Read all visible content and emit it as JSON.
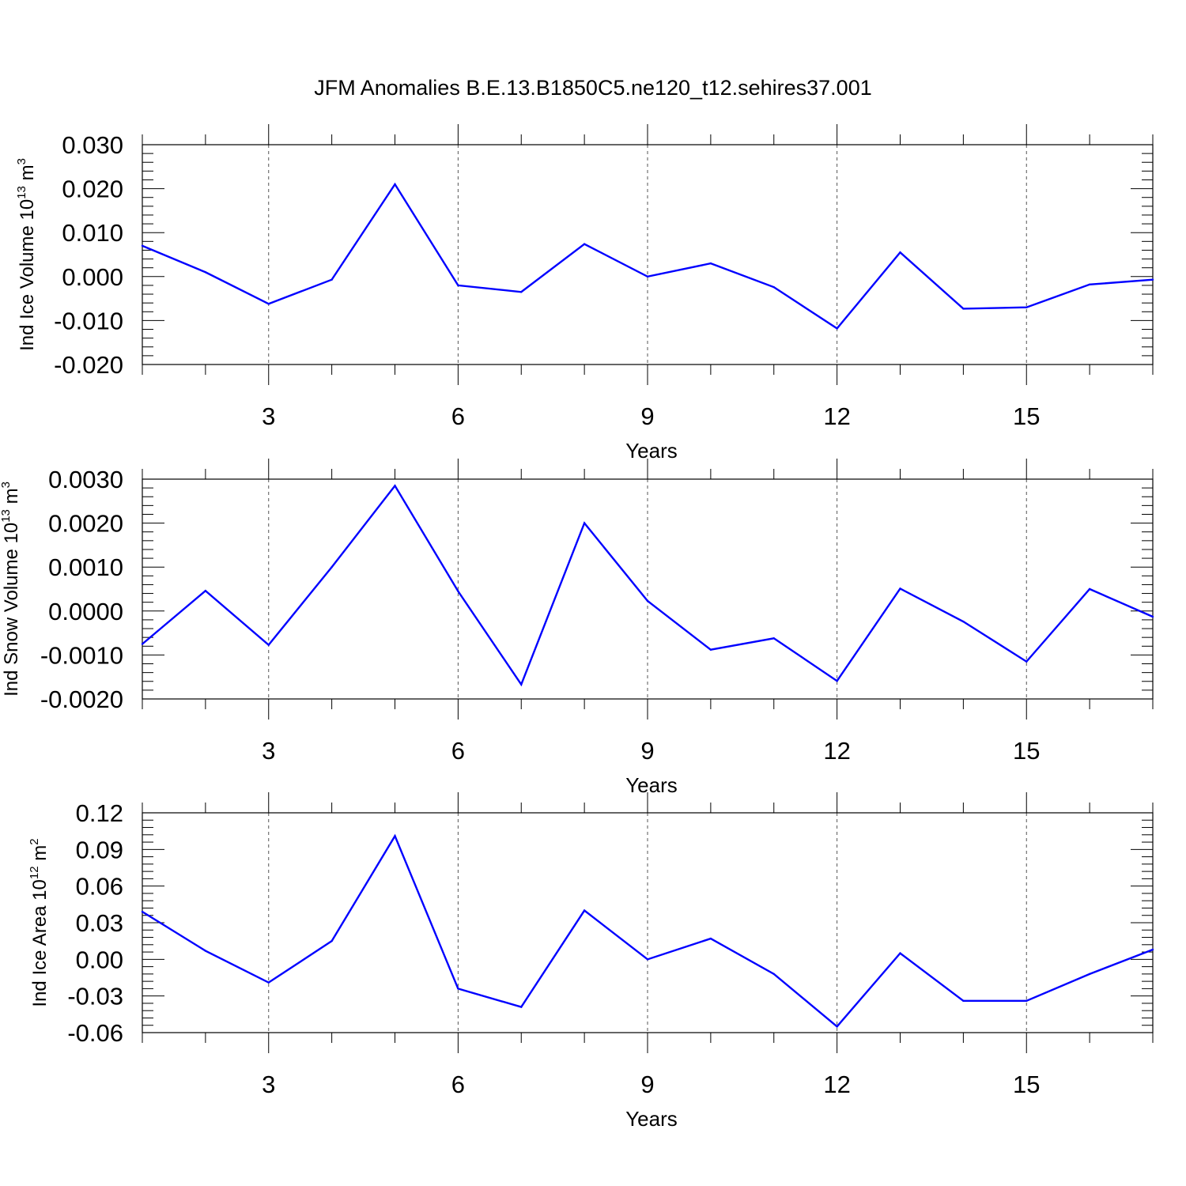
{
  "title": "JFM Anomalies B.E.13.B1850C5.ne120_t12.sehires37.001",
  "line_color": "#0000ff",
  "chart_data": [
    {
      "type": "line",
      "ylabel": "Ind Ice Volume 10",
      "ylabel_exp": "13",
      "ylabel_unit": " m",
      "ylabel_unit_exp": "3",
      "xlabel": "Years",
      "xlim": [
        1,
        17
      ],
      "ylim": [
        -0.02,
        0.03
      ],
      "xticks": [
        3,
        6,
        9,
        12,
        15
      ],
      "xtick_labels": [
        "3",
        "6",
        "9",
        "12",
        "15"
      ],
      "yticks": [
        -0.02,
        -0.01,
        0.0,
        0.01,
        0.02,
        0.03
      ],
      "ytick_labels": [
        "-0.020",
        "-0.010",
        "0.000",
        "0.010",
        "0.020",
        "0.030"
      ],
      "x": [
        1,
        2,
        3,
        4,
        5,
        6,
        7,
        8,
        9,
        10,
        11,
        12,
        13,
        14,
        15,
        16,
        17
      ],
      "series": [
        {
          "values": [
            0.007,
            0.001,
            -0.0062,
            -0.0007,
            0.021,
            -0.002,
            -0.0035,
            0.0074,
            0.0,
            0.003,
            -0.0024,
            -0.0118,
            0.0055,
            -0.0073,
            -0.007,
            -0.0018,
            -0.0007
          ]
        }
      ]
    },
    {
      "type": "line",
      "ylabel": "Ind Snow Volume 10",
      "ylabel_exp": "13",
      "ylabel_unit": " m",
      "ylabel_unit_exp": "3",
      "xlabel": "Years",
      "xlim": [
        1,
        17
      ],
      "ylim": [
        -0.002,
        0.003
      ],
      "xticks": [
        3,
        6,
        9,
        12,
        15
      ],
      "xtick_labels": [
        "3",
        "6",
        "9",
        "12",
        "15"
      ],
      "yticks": [
        -0.002,
        -0.001,
        0.0,
        0.001,
        0.002,
        0.003
      ],
      "ytick_labels": [
        "-0.0020",
        "-0.0010",
        "0.0000",
        "0.0010",
        "0.0020",
        "0.0030"
      ],
      "x": [
        1,
        2,
        3,
        4,
        5,
        6,
        7,
        8,
        9,
        10,
        11,
        12,
        13,
        14,
        15,
        16,
        17
      ],
      "series": [
        {
          "values": [
            -0.00075,
            0.00046,
            -0.00077,
            0.001,
            0.00285,
            0.00045,
            -0.00167,
            0.002,
            0.00023,
            -0.00088,
            -0.00062,
            -0.00159,
            0.00051,
            -0.00024,
            -0.00115,
            0.0005,
            -0.00013
          ]
        }
      ]
    },
    {
      "type": "line",
      "ylabel": "Ind Ice Area 10",
      "ylabel_exp": "12",
      "ylabel_unit": " m",
      "ylabel_unit_exp": "2",
      "xlabel": "Years",
      "xlim": [
        1,
        17
      ],
      "ylim": [
        -0.06,
        0.12
      ],
      "xticks": [
        3,
        6,
        9,
        12,
        15
      ],
      "xtick_labels": [
        "3",
        "6",
        "9",
        "12",
        "15"
      ],
      "yticks": [
        -0.06,
        -0.03,
        0.0,
        0.03,
        0.06,
        0.09,
        0.12
      ],
      "ytick_labels": [
        "-0.06",
        "-0.03",
        "0.00",
        "0.03",
        "0.06",
        "0.09",
        "0.12"
      ],
      "x": [
        1,
        2,
        3,
        4,
        5,
        6,
        7,
        8,
        9,
        10,
        11,
        12,
        13,
        14,
        15,
        16,
        17
      ],
      "series": [
        {
          "values": [
            0.039,
            0.007,
            -0.019,
            0.015,
            0.101,
            -0.024,
            -0.039,
            0.04,
            0.0,
            0.017,
            -0.012,
            -0.055,
            0.005,
            -0.034,
            -0.034,
            -0.012,
            0.008
          ]
        }
      ]
    }
  ]
}
